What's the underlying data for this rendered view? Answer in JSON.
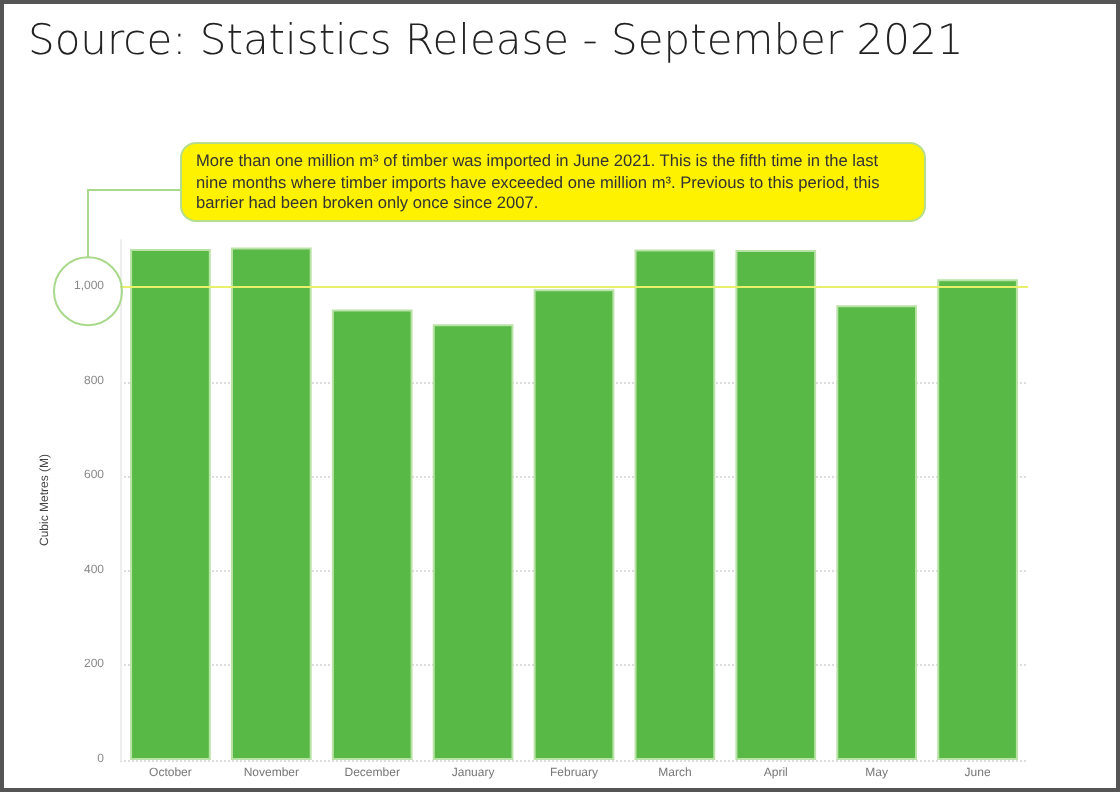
{
  "chart_data": {
    "type": "bar",
    "title": "Source: Statistics Release - September 2021",
    "ylabel": "Cubic Metres (M)",
    "categories": [
      "October",
      "November",
      "December",
      "January",
      "February",
      "March",
      "April",
      "May",
      "June"
    ],
    "values": [
      1081,
      1084,
      953,
      922,
      996,
      1080,
      1079,
      962,
      1017
    ],
    "color": "#58b947",
    "ylim": [
      0,
      1100
    ],
    "yticks": [
      0,
      200,
      400,
      600,
      800,
      {
        "value": 1000,
        "label": "1,000"
      }
    ],
    "grid": "y",
    "ref_lines": [
      {
        "axis": "y",
        "value": 1000,
        "color": "#e8f06a"
      }
    ],
    "annotations": [
      "More than one million m³ of timber was imported in June 2021. This is the fifth time in the last nine months where timber imports have exceeded one million m³. Previous to this period, this barrier had been broken only once since 2007."
    ]
  }
}
